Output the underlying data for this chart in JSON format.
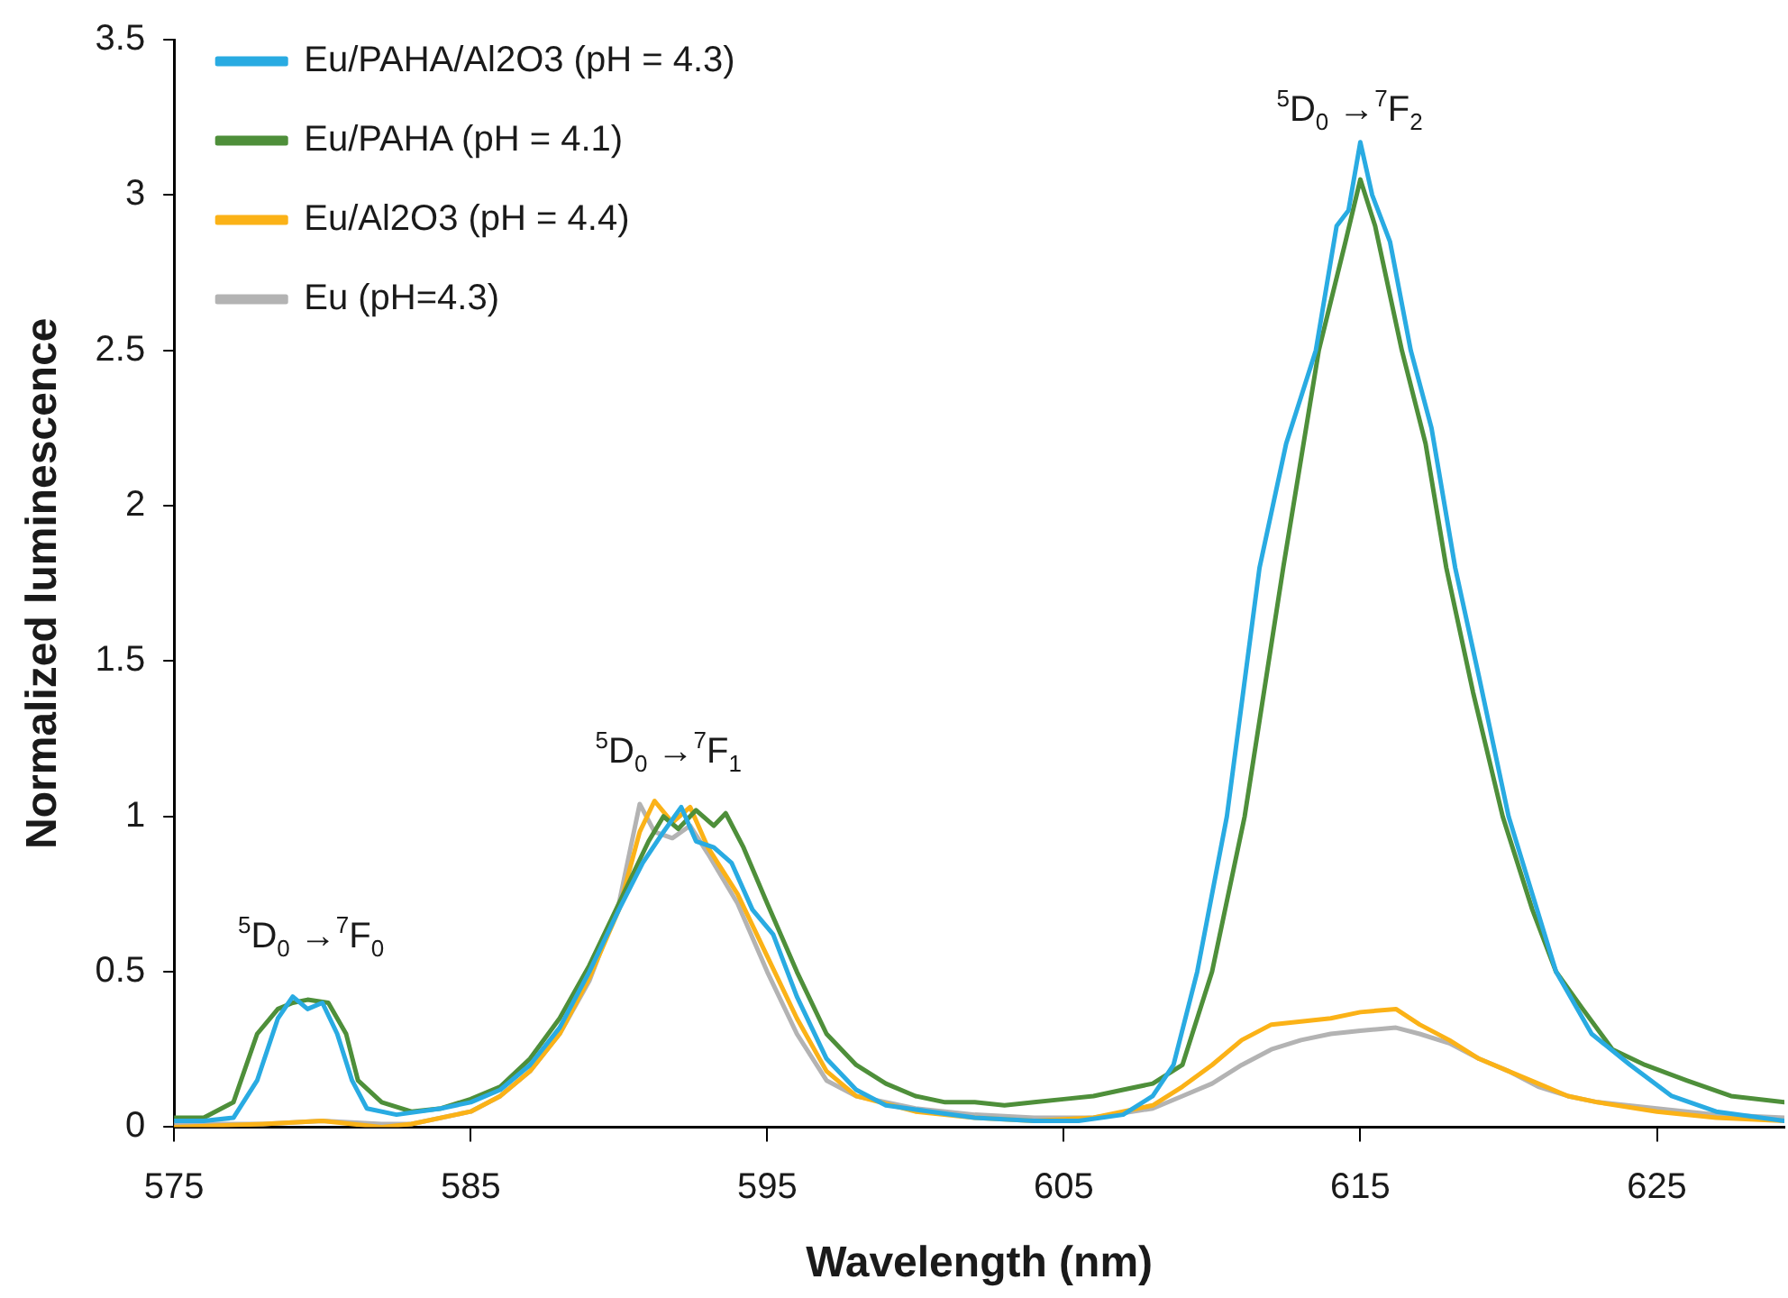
{
  "chart_data": {
    "type": "line",
    "xlabel": "Wavelength (nm)",
    "ylabel": "Normalized luminescence",
    "xlim": [
      575,
      629.3
    ],
    "xticks": [
      575,
      585,
      595,
      605,
      615,
      625
    ],
    "ylim": [
      0,
      3.5
    ],
    "yticks": [
      0,
      0.5,
      1,
      1.5,
      2,
      2.5,
      3,
      3.5
    ],
    "grid": false,
    "legend": "top left",
    "marker": "none",
    "line_style": "solid",
    "annotations": [
      "$^{5}$D$_{0}$ →$^{7}$F$_{0}$",
      "$^{5}$D$_{0}$ →$^{7}$F$_{1}$",
      "$^{5}$D$_{0}$ →$^{7}$F$_{2}$"
    ],
    "series": [
      {
        "name": "Eu/PAHA/Al2O3 (pH = 4.3)",
        "color": "#29abe2",
        "x": [
          575,
          576,
          577,
          577.8,
          578.5,
          579,
          579.5,
          580,
          580.5,
          581,
          581.5,
          582.5,
          584,
          585,
          586,
          587,
          588,
          589,
          590,
          590.8,
          591.5,
          592.1,
          592.6,
          593.2,
          593.8,
          594.5,
          595.2,
          596,
          597,
          598,
          599,
          600.5,
          602,
          604,
          605.5,
          607,
          608,
          608.7,
          609.5,
          610.5,
          611.6,
          612.5,
          613.5,
          614.2,
          614.6,
          615,
          615.4,
          616,
          616.7,
          617.4,
          618.2,
          619,
          620,
          620.8,
          621.6,
          622.8,
          624.1,
          625.5,
          627,
          629.3
        ],
        "values": [
          0.02,
          0.02,
          0.03,
          0.15,
          0.35,
          0.42,
          0.38,
          0.4,
          0.3,
          0.15,
          0.06,
          0.04,
          0.06,
          0.08,
          0.12,
          0.2,
          0.32,
          0.5,
          0.7,
          0.85,
          0.95,
          1.03,
          0.92,
          0.9,
          0.85,
          0.7,
          0.62,
          0.42,
          0.22,
          0.12,
          0.07,
          0.05,
          0.03,
          0.02,
          0.02,
          0.04,
          0.1,
          0.2,
          0.5,
          1.0,
          1.8,
          2.2,
          2.5,
          2.9,
          2.95,
          3.17,
          3.0,
          2.85,
          2.5,
          2.25,
          1.8,
          1.45,
          1.0,
          0.75,
          0.5,
          0.3,
          0.2,
          0.1,
          0.05,
          0.02
        ]
      },
      {
        "name": "Eu/PAHA (pH = 4.1)",
        "color": "#4e8f3a",
        "x": [
          575,
          576,
          577,
          577.8,
          578.5,
          579,
          579.5,
          580.2,
          580.8,
          581.2,
          582,
          583,
          584,
          585,
          586,
          587,
          588,
          589,
          590,
          591,
          591.5,
          592,
          592.6,
          593.2,
          593.6,
          594.2,
          595,
          596,
          597,
          598,
          599,
          600,
          601,
          602,
          603,
          604,
          605,
          606,
          607,
          608,
          609,
          610,
          611.1,
          612.4,
          613.6,
          614.5,
          615,
          615.5,
          616.4,
          617.2,
          617.9,
          618.8,
          619.8,
          620.8,
          621.6,
          622.5,
          623.5,
          624.6,
          626,
          627.5,
          629.3
        ],
        "values": [
          0.03,
          0.03,
          0.08,
          0.3,
          0.38,
          0.4,
          0.41,
          0.4,
          0.3,
          0.15,
          0.08,
          0.05,
          0.06,
          0.09,
          0.13,
          0.22,
          0.35,
          0.52,
          0.72,
          0.92,
          1.0,
          0.96,
          1.02,
          0.97,
          1.01,
          0.9,
          0.72,
          0.5,
          0.3,
          0.2,
          0.14,
          0.1,
          0.08,
          0.08,
          0.07,
          0.08,
          0.09,
          0.1,
          0.12,
          0.14,
          0.2,
          0.5,
          1.0,
          1.8,
          2.5,
          2.85,
          3.05,
          2.9,
          2.5,
          2.2,
          1.8,
          1.4,
          1.0,
          0.7,
          0.5,
          0.38,
          0.25,
          0.2,
          0.15,
          0.1,
          0.08
        ]
      },
      {
        "name": "Eu/Al2O3 (pH = 4.4)",
        "color": "#fbb217",
        "x": [
          575,
          578,
          580,
          582,
          583,
          585,
          586,
          587,
          588,
          589,
          590,
          590.7,
          591.2,
          591.8,
          592.4,
          593,
          594,
          595,
          596,
          597,
          598,
          600,
          602,
          604,
          606,
          608,
          609,
          610,
          611,
          612,
          613,
          614,
          615,
          616.2,
          617,
          618,
          619,
          620,
          621,
          622,
          623,
          625,
          627,
          629.3
        ],
        "values": [
          0,
          0.01,
          0.02,
          0,
          0.01,
          0.05,
          0.1,
          0.18,
          0.3,
          0.48,
          0.7,
          0.95,
          1.05,
          0.98,
          1.03,
          0.9,
          0.75,
          0.55,
          0.35,
          0.18,
          0.1,
          0.05,
          0.03,
          0.02,
          0.03,
          0.07,
          0.13,
          0.2,
          0.28,
          0.33,
          0.34,
          0.35,
          0.37,
          0.38,
          0.33,
          0.28,
          0.22,
          0.18,
          0.14,
          0.1,
          0.08,
          0.05,
          0.03,
          0.02
        ]
      },
      {
        "name": "Eu (pH=4.3)",
        "color": "#b3b3b3",
        "x": [
          575,
          578,
          580,
          582,
          583,
          585,
          586,
          587,
          588,
          589,
          590,
          590.7,
          591.2,
          591.8,
          592.4,
          593,
          594,
          595,
          596,
          597,
          598,
          600,
          602,
          604,
          606,
          608,
          609,
          610,
          611,
          612,
          613,
          614,
          615,
          616.2,
          617,
          618,
          619,
          620,
          621,
          622,
          623,
          625,
          627,
          629.3
        ],
        "values": [
          0.01,
          0.01,
          0.02,
          0.01,
          0.01,
          0.05,
          0.1,
          0.18,
          0.3,
          0.47,
          0.72,
          1.04,
          0.95,
          0.93,
          0.97,
          0.88,
          0.72,
          0.5,
          0.3,
          0.15,
          0.1,
          0.06,
          0.04,
          0.03,
          0.03,
          0.06,
          0.1,
          0.14,
          0.2,
          0.25,
          0.28,
          0.3,
          0.31,
          0.32,
          0.3,
          0.27,
          0.22,
          0.18,
          0.13,
          0.1,
          0.08,
          0.06,
          0.04,
          0.03
        ]
      }
    ]
  }
}
